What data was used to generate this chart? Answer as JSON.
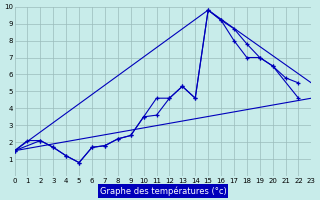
{
  "xlabel": "Graphe des températures (°c)",
  "bg_color": "#c8ecea",
  "grid_color": "#9bbcbc",
  "line_color": "#0000bb",
  "xlim": [
    0,
    23
  ],
  "ylim": [
    0,
    10
  ],
  "xticks": [
    0,
    1,
    2,
    3,
    4,
    5,
    6,
    7,
    8,
    9,
    10,
    11,
    12,
    13,
    14,
    15,
    16,
    17,
    18,
    19,
    20,
    21,
    22,
    23
  ],
  "yticks": [
    1,
    2,
    3,
    4,
    5,
    6,
    7,
    8,
    9,
    10
  ],
  "series1_x": [
    0,
    1,
    2,
    3,
    4,
    5,
    6,
    7,
    8,
    9,
    10,
    11,
    12,
    13,
    14,
    15,
    16,
    17,
    18,
    19,
    20,
    21,
    22
  ],
  "series1_y": [
    1.5,
    2.1,
    2.1,
    1.7,
    1.2,
    0.8,
    1.7,
    1.8,
    2.2,
    2.4,
    3.5,
    4.6,
    4.6,
    5.3,
    4.6,
    9.8,
    9.2,
    8.7,
    7.8,
    7.0,
    6.5,
    5.8,
    5.5
  ],
  "series2_x": [
    0,
    23
  ],
  "series2_y": [
    1.5,
    4.6
  ],
  "series3_x": [
    0,
    15,
    23
  ],
  "series3_y": [
    1.5,
    9.8,
    5.5
  ],
  "series4_x": [
    0,
    2,
    3,
    4,
    5,
    6,
    7,
    8,
    9,
    10,
    11,
    12,
    13,
    14,
    15,
    16,
    17,
    18,
    19,
    20,
    22
  ],
  "series4_y": [
    1.5,
    2.1,
    1.7,
    1.2,
    0.8,
    1.7,
    1.8,
    2.2,
    2.4,
    3.5,
    3.6,
    4.6,
    5.3,
    4.6,
    9.8,
    9.2,
    8.0,
    7.0,
    7.0,
    6.5,
    4.6
  ]
}
